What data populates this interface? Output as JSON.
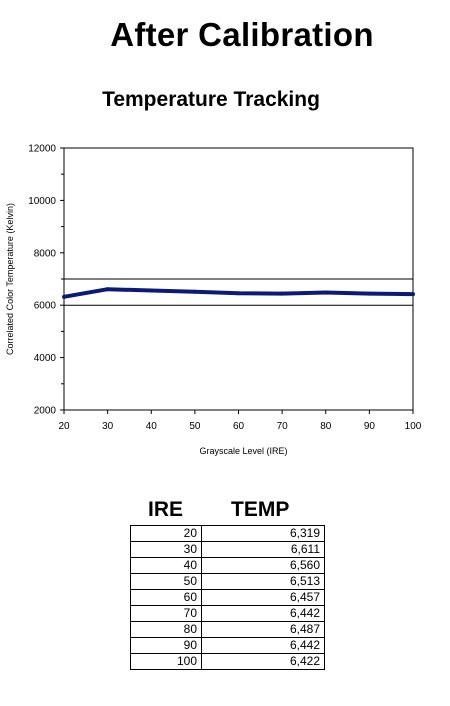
{
  "title": "After Calibration",
  "chart_data": {
    "type": "line",
    "title": "Temperature Tracking",
    "xlabel": "Grayscale Level (IRE)",
    "ylabel": "Correlated Color Temperature (Kelvin)",
    "x": [
      20,
      30,
      40,
      50,
      60,
      70,
      80,
      90,
      100
    ],
    "series": [
      {
        "values": [
          6319,
          6611,
          6560,
          6513,
          6457,
          6442,
          6487,
          6442,
          6422
        ]
      }
    ],
    "xlim": [
      20,
      100
    ],
    "ylim": [
      2000,
      12000
    ],
    "xticks": [
      "20",
      "30",
      "40",
      "50",
      "60",
      "70",
      "80",
      "90",
      "100"
    ],
    "yticks": [
      "2000",
      "4000",
      "6000",
      "8000",
      "10000",
      "12000"
    ],
    "reference_lines": [
      6000,
      7000
    ],
    "line_color": "#0b1a78",
    "grid": false
  },
  "table": {
    "headers": [
      "IRE",
      "TEMP"
    ],
    "rows": [
      [
        "20",
        "6,319"
      ],
      [
        "30",
        "6,611"
      ],
      [
        "40",
        "6,560"
      ],
      [
        "50",
        "6,513"
      ],
      [
        "60",
        "6,457"
      ],
      [
        "70",
        "6,442"
      ],
      [
        "80",
        "6,487"
      ],
      [
        "90",
        "6,442"
      ],
      [
        "100",
        "6,422"
      ]
    ]
  }
}
